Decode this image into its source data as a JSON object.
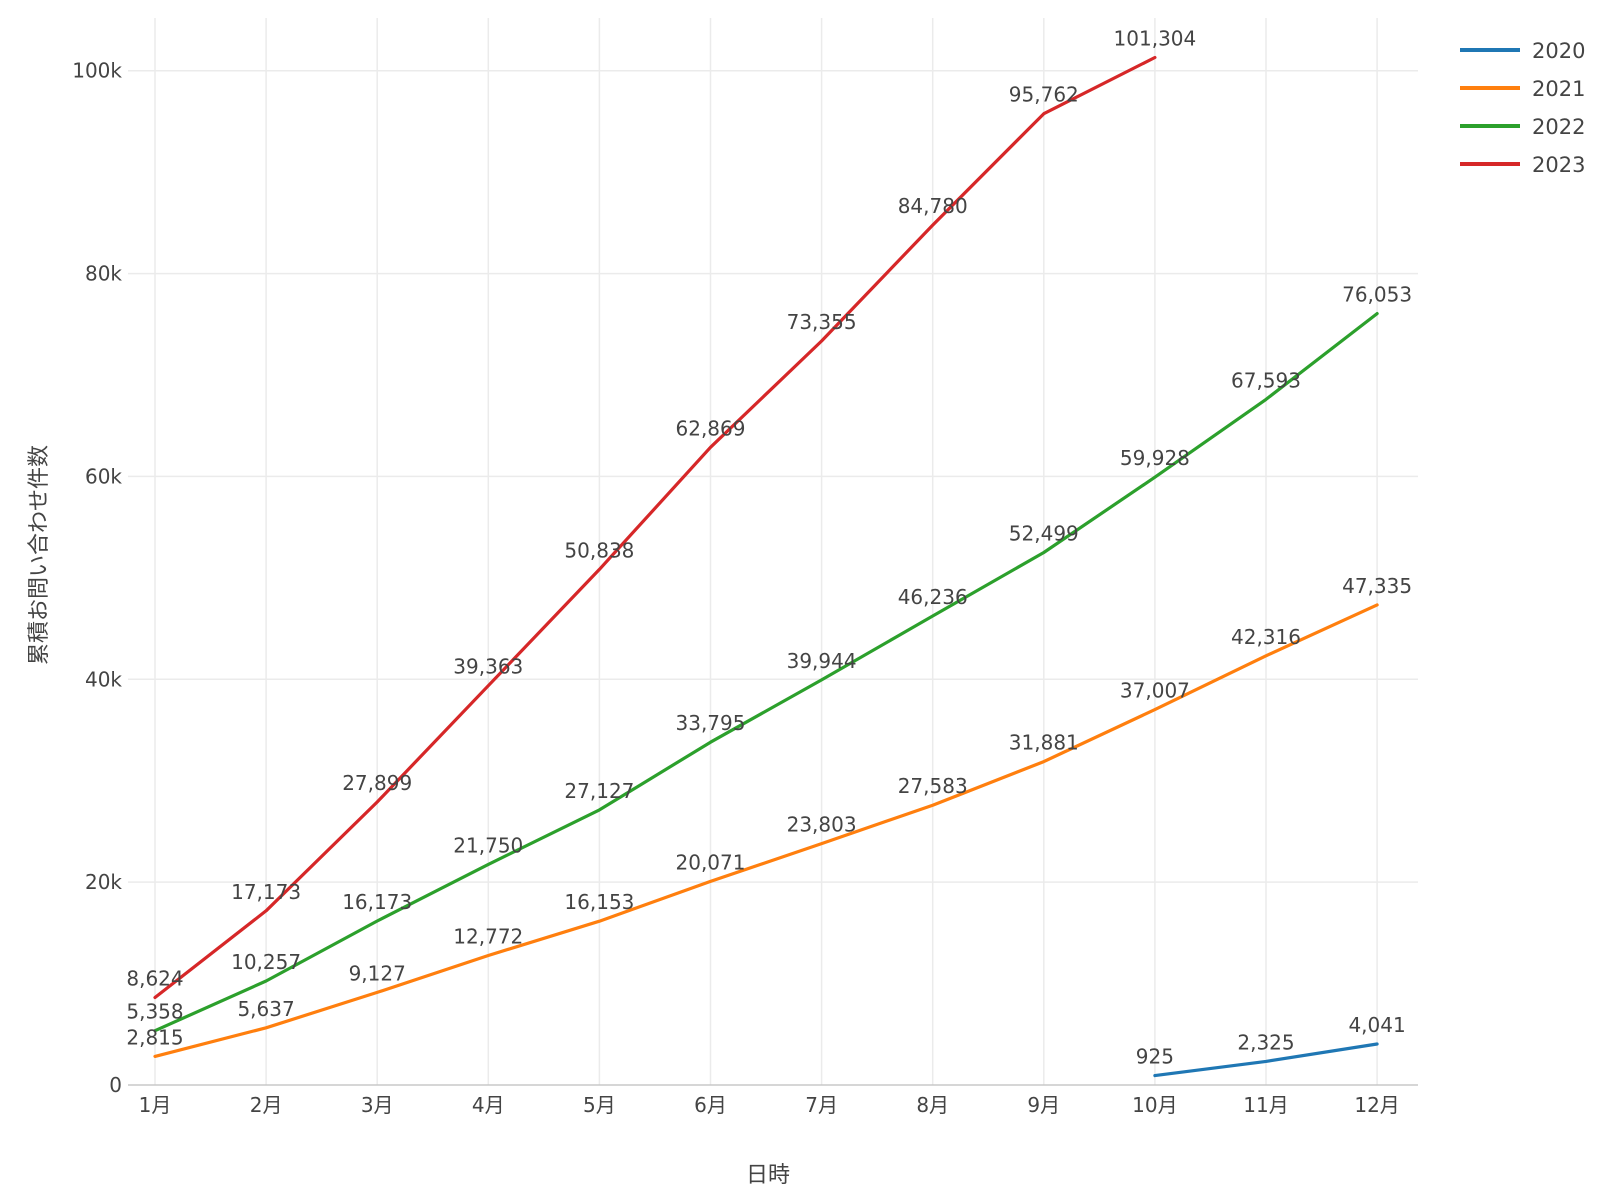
{
  "chart_data": {
    "type": "line",
    "xlabel": "日時",
    "ylabel": "累積お問い合わせ件数",
    "categories": [
      "1月",
      "2月",
      "3月",
      "4月",
      "5月",
      "6月",
      "7月",
      "8月",
      "9月",
      "10月",
      "11月",
      "12月"
    ],
    "ylim": [
      0,
      105000
    ],
    "yticks": [
      0,
      20000,
      40000,
      60000,
      80000,
      100000
    ],
    "ytick_labels": [
      "0",
      "20k",
      "40k",
      "60k",
      "80k",
      "100k"
    ],
    "grid": true,
    "legend_position": "top-right",
    "series": [
      {
        "name": "2020",
        "color": "#1f77b4",
        "values": [
          null,
          null,
          null,
          null,
          null,
          null,
          null,
          null,
          null,
          925,
          2325,
          4041
        ],
        "labels": [
          null,
          null,
          null,
          null,
          null,
          null,
          null,
          null,
          null,
          "925",
          "2,325",
          "4,041"
        ]
      },
      {
        "name": "2021",
        "color": "#ff7f0e",
        "values": [
          2815,
          5637,
          9127,
          12772,
          16153,
          20071,
          23803,
          27583,
          31881,
          37007,
          42316,
          47335
        ],
        "labels": [
          "2,815",
          "5,637",
          "9,127",
          "12,772",
          "16,153",
          "20,071",
          "23,803",
          "27,583",
          "31,881",
          "37,007",
          "42,316",
          "47,335"
        ]
      },
      {
        "name": "2022",
        "color": "#2ca02c",
        "values": [
          5358,
          10257,
          16173,
          21750,
          27127,
          33795,
          39944,
          46236,
          52499,
          59928,
          67593,
          76053
        ],
        "labels": [
          "5,358",
          "10,257",
          "16,173",
          "21,750",
          "27,127",
          "33,795",
          "39,944",
          "46,236",
          "52,499",
          "59,928",
          "67,593",
          "76,053"
        ]
      },
      {
        "name": "2023",
        "color": "#d62728",
        "values": [
          8624,
          17173,
          27899,
          39363,
          50838,
          62869,
          73355,
          84780,
          95762,
          101304,
          null,
          null
        ],
        "labels": [
          "8,624",
          "17,173",
          "27,899",
          "39,363",
          "50,838",
          "62,869",
          "73,355",
          "84,780",
          "95,762",
          "101,304",
          null,
          null
        ]
      }
    ]
  }
}
